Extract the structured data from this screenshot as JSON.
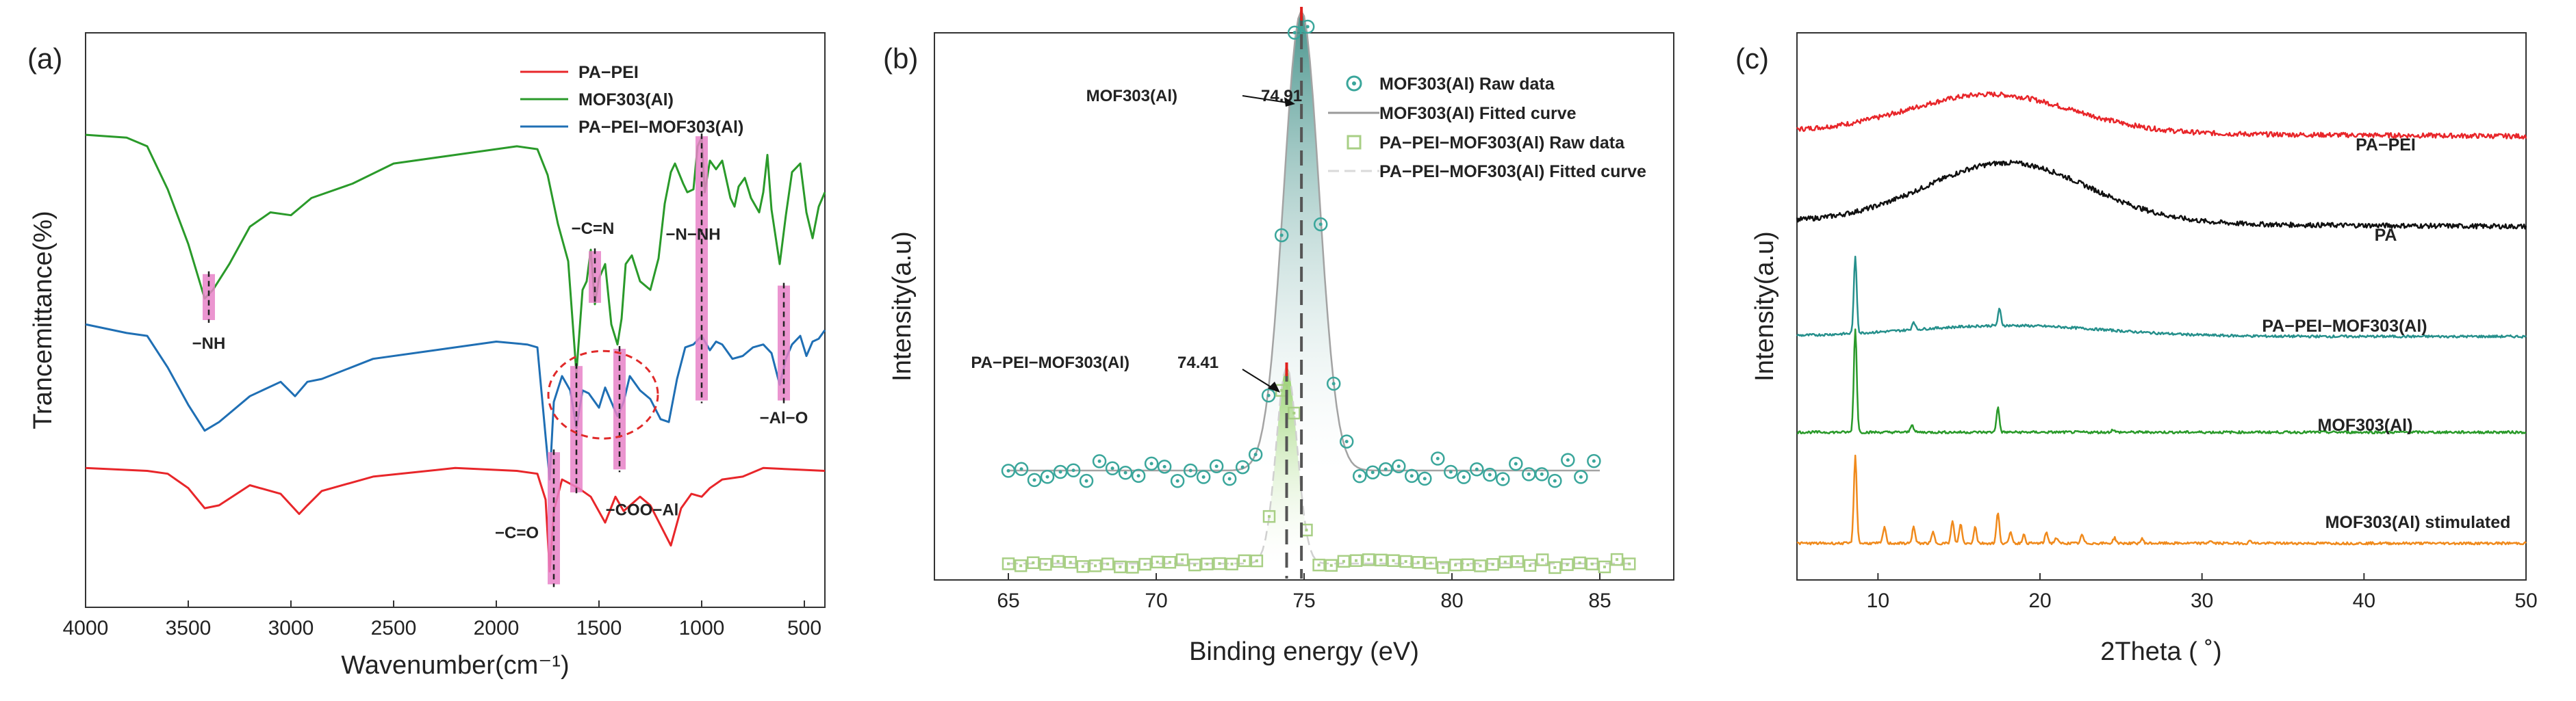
{
  "chart_data": [
    {
      "panel": "(a)",
      "type": "line",
      "title": "",
      "xlabel": "Wavenumber(cm⁻¹)",
      "ylabel": "Trancemittance(%)",
      "xlim": [
        4000,
        400
      ],
      "ylim": [
        0,
        100
      ],
      "xticks": [
        4000,
        3500,
        3000,
        2500,
        2000,
        1500,
        1000,
        500
      ],
      "legend_position": "top-center",
      "series": [
        {
          "name": "PA−PEI",
          "color": "#e8262a",
          "points": [
            [
              4000,
              24
            ],
            [
              3700,
              24
            ],
            [
              3600,
              23
            ],
            [
              3500,
              21
            ],
            [
              3420,
              17
            ],
            [
              3350,
              18
            ],
            [
              3200,
              21
            ],
            [
              3050,
              20
            ],
            [
              2960,
              16
            ],
            [
              2920,
              18
            ],
            [
              2850,
              20
            ],
            [
              2600,
              23
            ],
            [
              2200,
              24
            ],
            [
              1900,
              24
            ],
            [
              1800,
              23
            ],
            [
              1760,
              19
            ],
            [
              1740,
              6
            ],
            [
              1720,
              17
            ],
            [
              1680,
              22
            ],
            [
              1600,
              21
            ],
            [
              1540,
              19
            ],
            [
              1470,
              15
            ],
            [
              1420,
              19
            ],
            [
              1380,
              17
            ],
            [
              1300,
              19
            ],
            [
              1250,
              18
            ],
            [
              1200,
              14
            ],
            [
              1150,
              11
            ],
            [
              1100,
              17
            ],
            [
              1050,
              20
            ],
            [
              1000,
              19
            ],
            [
              960,
              21
            ],
            [
              900,
              22
            ],
            [
              800,
              23
            ],
            [
              700,
              24
            ],
            [
              400,
              24
            ]
          ]
        },
        {
          "name": "MOF303(Al)",
          "color": "#2a9a2a",
          "points": [
            [
              4000,
              82
            ],
            [
              3800,
              82
            ],
            [
              3700,
              80
            ],
            [
              3600,
              73
            ],
            [
              3500,
              63
            ],
            [
              3420,
              54
            ],
            [
              3380,
              55
            ],
            [
              3300,
              60
            ],
            [
              3200,
              66
            ],
            [
              3100,
              69
            ],
            [
              3000,
              68
            ],
            [
              2950,
              70
            ],
            [
              2900,
              71
            ],
            [
              2700,
              74
            ],
            [
              2500,
              77
            ],
            [
              2200,
              79
            ],
            [
              1900,
              80
            ],
            [
              1800,
              80
            ],
            [
              1750,
              75
            ],
            [
              1700,
              67
            ],
            [
              1650,
              60
            ],
            [
              1610,
              41
            ],
            [
              1580,
              55
            ],
            [
              1560,
              57
            ],
            [
              1540,
              62
            ],
            [
              1520,
              53
            ],
            [
              1500,
              57
            ],
            [
              1470,
              60
            ],
            [
              1440,
              49
            ],
            [
              1410,
              46
            ],
            [
              1390,
              50
            ],
            [
              1370,
              60
            ],
            [
              1340,
              61
            ],
            [
              1300,
              57
            ],
            [
              1250,
              55
            ],
            [
              1210,
              61
            ],
            [
              1180,
              70
            ],
            [
              1150,
              76
            ],
            [
              1130,
              77
            ],
            [
              1090,
              74
            ],
            [
              1070,
              72
            ],
            [
              1040,
              73
            ],
            [
              1020,
              80
            ],
            [
              1000,
              82
            ],
            [
              985,
              72
            ],
            [
              960,
              78
            ],
            [
              930,
              76
            ],
            [
              900,
              78
            ],
            [
              860,
              71
            ],
            [
              840,
              70
            ],
            [
              820,
              73
            ],
            [
              790,
              75
            ],
            [
              760,
              71
            ],
            [
              720,
              69
            ],
            [
              700,
              72
            ],
            [
              680,
              79
            ],
            [
              660,
              69
            ],
            [
              620,
              60
            ],
            [
              590,
              68
            ],
            [
              560,
              76
            ],
            [
              520,
              77
            ],
            [
              490,
              69
            ],
            [
              460,
              64
            ],
            [
              430,
              70
            ],
            [
              400,
              72
            ]
          ]
        },
        {
          "name": "PA−PEI−MOF303(Al)",
          "color": "#1f6fb4",
          "points": [
            [
              4000,
              49
            ],
            [
              3800,
              48
            ],
            [
              3700,
              47
            ],
            [
              3600,
              42
            ],
            [
              3500,
              35
            ],
            [
              3420,
              31
            ],
            [
              3350,
              32
            ],
            [
              3200,
              37
            ],
            [
              3050,
              39
            ],
            [
              2980,
              37
            ],
            [
              2920,
              39
            ],
            [
              2850,
              40
            ],
            [
              2600,
              43
            ],
            [
              2300,
              45
            ],
            [
              2000,
              46
            ],
            [
              1850,
              46
            ],
            [
              1800,
              45
            ],
            [
              1760,
              30
            ],
            [
              1740,
              22
            ],
            [
              1720,
              36
            ],
            [
              1680,
              40
            ],
            [
              1640,
              38
            ],
            [
              1610,
              31
            ],
            [
              1580,
              38
            ],
            [
              1550,
              37
            ],
            [
              1500,
              35
            ],
            [
              1470,
              38
            ],
            [
              1440,
              36
            ],
            [
              1410,
              33
            ],
            [
              1380,
              36
            ],
            [
              1350,
              40
            ],
            [
              1300,
              38
            ],
            [
              1250,
              36
            ],
            [
              1200,
              33
            ],
            [
              1160,
              32
            ],
            [
              1120,
              40
            ],
            [
              1080,
              45
            ],
            [
              1040,
              46
            ],
            [
              1000,
              47
            ],
            [
              960,
              45
            ],
            [
              930,
              46
            ],
            [
              900,
              46
            ],
            [
              850,
              43
            ],
            [
              800,
              44
            ],
            [
              750,
              45
            ],
            [
              700,
              46
            ],
            [
              660,
              44
            ],
            [
              620,
              39
            ],
            [
              590,
              43
            ],
            [
              560,
              46
            ],
            [
              520,
              47
            ],
            [
              490,
              44
            ],
            [
              460,
              46
            ],
            [
              430,
              47
            ],
            [
              400,
              48
            ]
          ]
        }
      ],
      "annotations": [
        {
          "text": "−NH",
          "x": 3400
        },
        {
          "text": "−C=N",
          "x": 1520
        },
        {
          "text": "−N−NH",
          "x": 1000
        },
        {
          "text": "−C=O",
          "x": 1720
        },
        {
          "text": "−COO−Al",
          "x": 1400
        },
        {
          "text": "−Al−O",
          "x": 600
        }
      ]
    },
    {
      "panel": "(b)",
      "type": "scatter",
      "title": "",
      "xlabel": "Binding energy (eV)",
      "ylabel": "Intensity(a.u)",
      "xlim": [
        62.5,
        87.5
      ],
      "ylim": [
        0,
        100
      ],
      "xticks": [
        65,
        70,
        75,
        80,
        85
      ],
      "legend_position": "top-right",
      "series": [
        {
          "name": "MOF303(Al) Raw data",
          "color": "#3aa69b",
          "marker": "circle-dot",
          "peak_center": 74.91,
          "peak_height": 84,
          "sigma": 0.6,
          "baseline": 20,
          "x_start": 65,
          "x_end": 85
        },
        {
          "name": "MOF303(Al) Fitted curve",
          "color": "#9a9a9a",
          "peak_center": 74.91,
          "peak_height": 84,
          "sigma": 0.6,
          "baseline": 20
        },
        {
          "name": "PA−PEI−MOF303(Al) Raw data",
          "color": "#a8cf85",
          "marker": "square-dot",
          "peak_center": 74.41,
          "peak_height": 36,
          "sigma": 0.35,
          "baseline": 3,
          "x_start": 65,
          "x_end": 86
        },
        {
          "name": "PA−PEI−MOF303(Al) Fitted curve",
          "color": "#d9d9d9",
          "peak_center": 74.41,
          "peak_height": 36,
          "sigma": 0.35,
          "baseline": 3
        }
      ],
      "annotations": [
        {
          "text": "MOF303(Al)",
          "value": "74.91",
          "x": 74.91
        },
        {
          "text": "PA−PEI−MOF303(Al)",
          "value": "74.41",
          "x": 74.41
        }
      ]
    },
    {
      "panel": "(c)",
      "type": "line",
      "title": "",
      "xlabel": "2Theta ( ˚)",
      "ylabel": "Intensity(a.u)",
      "xlim": [
        5,
        50
      ],
      "ylim": [
        0,
        100
      ],
      "xticks": [
        10,
        20,
        30,
        40,
        50
      ],
      "series": [
        {
          "name": "PA−PEI",
          "color": "#e8262a",
          "baseline": 82,
          "hump": {
            "center": 17,
            "height": 7,
            "width": 5
          },
          "peaks": []
        },
        {
          "name": "PA",
          "color": "#111111",
          "baseline": 65.5,
          "hump": {
            "center": 18,
            "height": 11,
            "width": 5
          },
          "peaks": []
        },
        {
          "name": "PA−PEI−MOF303(Al)",
          "color": "#26908c",
          "baseline": 44.5,
          "hump": {
            "center": 18,
            "height": 2,
            "width": 6
          },
          "peaks": [
            [
              8.6,
              14
            ],
            [
              12.2,
              1.5
            ],
            [
              17.5,
              3
            ]
          ]
        },
        {
          "name": "MOF303(Al)",
          "color": "#2a9a2a",
          "baseline": 27,
          "hump": {
            "center": 18,
            "height": 0,
            "width": 6
          },
          "peaks": [
            [
              8.6,
              19
            ],
            [
              12.1,
              1.5
            ],
            [
              17.4,
              4.5
            ],
            [
              24.5,
              0.5
            ]
          ]
        },
        {
          "name": "MOF303(Al)  stimulated",
          "color": "#f08a1c",
          "baseline": 6.7,
          "hump": {
            "center": 18,
            "height": 0,
            "width": 6
          },
          "peaks": [
            [
              8.6,
              16
            ],
            [
              10.4,
              3
            ],
            [
              12.2,
              3
            ],
            [
              13.4,
              2
            ],
            [
              14.6,
              4
            ],
            [
              15.1,
              3.5
            ],
            [
              16.0,
              3
            ],
            [
              17.4,
              5.5
            ],
            [
              18.2,
              2
            ],
            [
              19.0,
              1.5
            ],
            [
              20.4,
              2
            ],
            [
              21.0,
              1
            ],
            [
              22.6,
              1.5
            ],
            [
              24.6,
              1
            ],
            [
              26.3,
              0.8
            ],
            [
              30.5,
              0.5
            ],
            [
              33.0,
              0.5
            ]
          ]
        }
      ]
    }
  ]
}
